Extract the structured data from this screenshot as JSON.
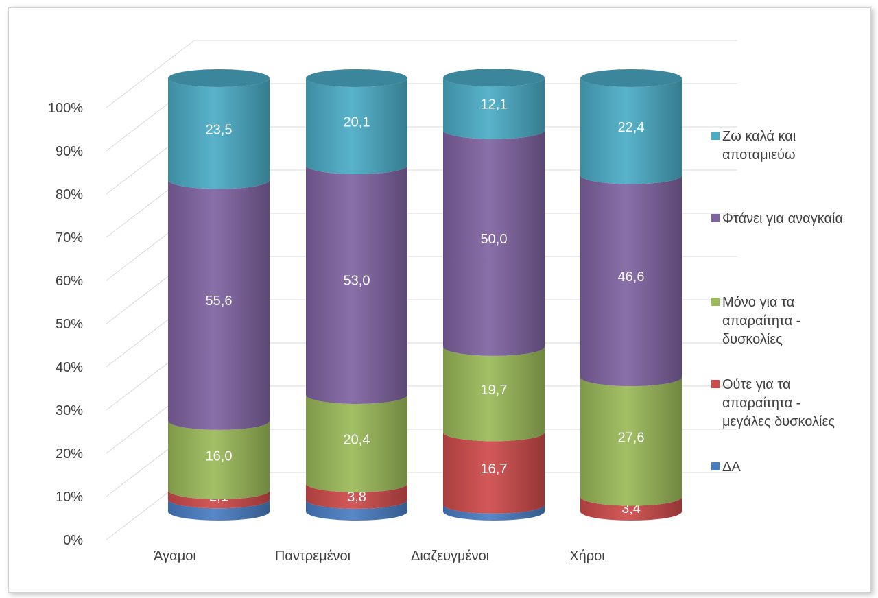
{
  "chart_data": {
    "type": "bar",
    "stacked": true,
    "percent": true,
    "style": "3d-cylinder",
    "categories": [
      "Άγαμοι",
      "Παντρεμένοι",
      "Διαζευγμένοι",
      "Χήροι"
    ],
    "yticks": [
      "0%",
      "10%",
      "20%",
      "30%",
      "40%",
      "50%",
      "60%",
      "70%",
      "80%",
      "90%",
      "100%"
    ],
    "ylim": [
      0,
      100
    ],
    "grid": true,
    "legend_position": "right",
    "series": [
      {
        "name": "ΔΑ",
        "color": "#4a7ec4",
        "values": [
          2.8,
          2.7,
          1.6,
          0.0
        ],
        "labels": [
          "",
          "",
          "",
          ""
        ]
      },
      {
        "name": "Ούτε για τα απαραίτητα - μεγάλες δυσκολίες",
        "color": "#cf4b4b",
        "values": [
          2.1,
          3.8,
          16.7,
          3.4
        ],
        "labels": [
          "2,1",
          "3,8",
          "16,7",
          "3,4"
        ]
      },
      {
        "name": "Μόνο για τα απαραίτητα - δυσκολίες",
        "color": "#9bbb59",
        "values": [
          16.0,
          20.4,
          19.7,
          27.6
        ],
        "labels": [
          "16,0",
          "20,4",
          "19,7",
          "27,6"
        ]
      },
      {
        "name": "Φτάνει για αναγκαία",
        "color": "#8064a2",
        "values": [
          55.6,
          53.0,
          50.0,
          46.6
        ],
        "labels": [
          "55,6",
          "53,0",
          "50,0",
          "46,6"
        ]
      },
      {
        "name": "Ζω καλά και αποταμιεύω",
        "color": "#4bacc6",
        "values": [
          23.5,
          20.1,
          12.1,
          22.4
        ],
        "labels": [
          "23,5",
          "20,1",
          "12,1",
          "22,4"
        ]
      }
    ],
    "legend": [
      {
        "lines": [
          "Ζω καλά και",
          "αποταμιεύω"
        ],
        "color": "#4bacc6"
      },
      {
        "lines": [
          "Φτάνει για αναγκαία"
        ],
        "color": "#8064a2"
      },
      {
        "lines": [
          "Μόνο για τα",
          "απαραίτητα -",
          "δυσκολίες"
        ],
        "color": "#9bbb59"
      },
      {
        "lines": [
          "Ούτε για τα",
          "απαραίτητα -",
          "μεγάλες δυσκολίες"
        ],
        "color": "#cf4b4b"
      },
      {
        "lines": [
          "ΔΑ"
        ],
        "color": "#4a7ec4"
      }
    ]
  }
}
